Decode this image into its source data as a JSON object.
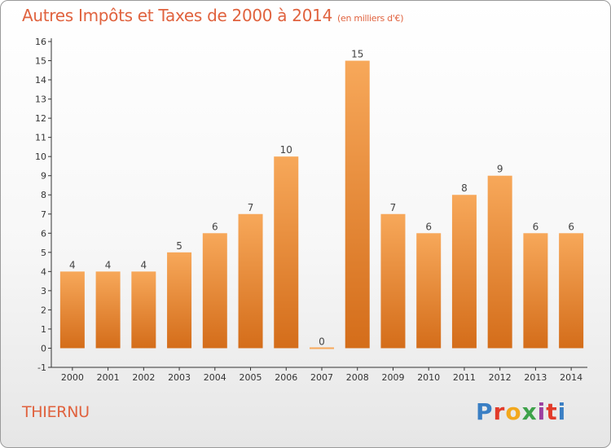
{
  "header": {
    "title": "Autres Impôts et Taxes de 2000 à 2014",
    "unit": "(en milliers d'€)"
  },
  "footer": {
    "place": "THIERNU",
    "logo_text": "Proxiti",
    "logo_colors": [
      "#3a7fc4",
      "#e23b2a",
      "#f2a81d",
      "#3ea24a",
      "#9c3fa0",
      "#e23b2a",
      "#3a7fc4"
    ]
  },
  "colors": {
    "accent": "#e0623e",
    "bar_top": "#f7a85a",
    "bar_bottom": "#d46d1a",
    "axis": "#333333"
  },
  "chart_data": {
    "type": "bar",
    "title": "Autres Impôts et Taxes de 2000 à 2014",
    "categories": [
      "2000",
      "2001",
      "2002",
      "2003",
      "2004",
      "2005",
      "2006",
      "2007",
      "2008",
      "2009",
      "2010",
      "2011",
      "2012",
      "2013",
      "2014"
    ],
    "values": [
      4,
      4,
      4,
      5,
      6,
      7,
      10,
      0,
      15,
      7,
      6,
      8,
      9,
      6,
      6
    ],
    "data_labels": [
      "4",
      "4",
      "4",
      "5",
      "6",
      "7",
      "10",
      "0",
      "15",
      "7",
      "6",
      "8",
      "9",
      "6",
      "6"
    ],
    "xlabel": "",
    "ylabel": "",
    "ylim": [
      -1,
      16
    ],
    "yticks": [
      "-1",
      "0",
      "1",
      "2",
      "3",
      "4",
      "5",
      "6",
      "7",
      "8",
      "9",
      "10",
      "11",
      "12",
      "13",
      "14",
      "15",
      "16"
    ],
    "grid": false,
    "legend": "none"
  }
}
